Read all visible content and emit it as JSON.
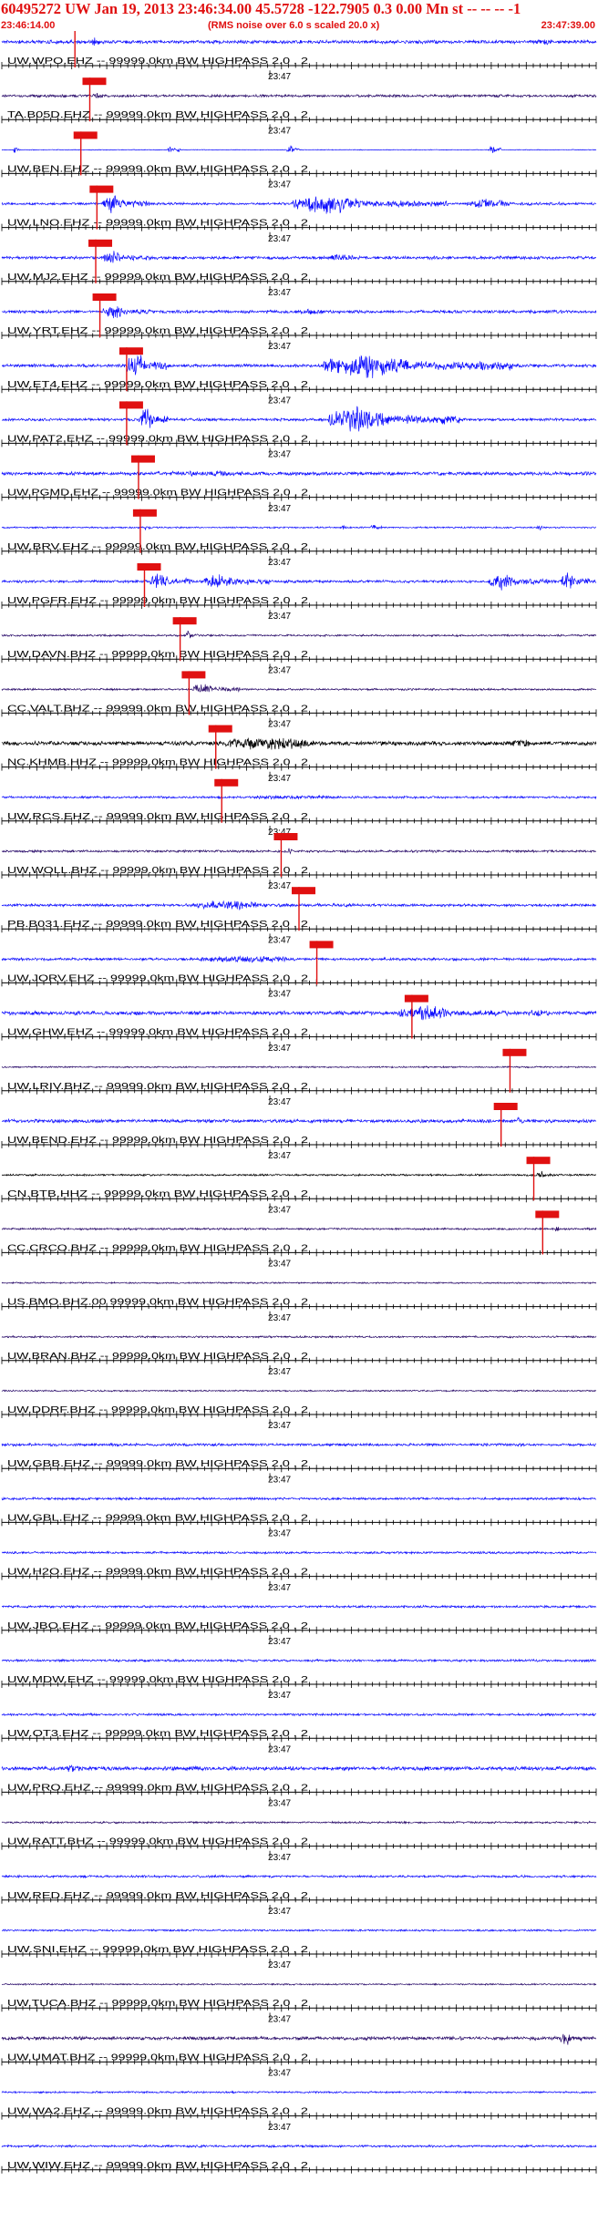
{
  "header": {
    "title": "60495272 UW Jan 19, 2013 23:46:34.00   45.5728 -122.7905  0.3 0.00 Mn st -- -- --  -1",
    "start_time": "23:46:14.00",
    "note": "(RMS noise over 6.0 s scaled 20.0 x)",
    "end_time": "23:47:39.00"
  },
  "colors": {
    "title": "#e01010",
    "trace_blue": "#1010ff",
    "trace_purple": "#2a0c6a",
    "trace_black": "#000000",
    "marker": "#e01010",
    "baseline": "#000000"
  },
  "chart_data": {
    "type": "seismogram",
    "time_axis": {
      "start": "23:46:14.00",
      "end": "23:47:39.00",
      "minute_label": "23:47"
    },
    "traces": [
      {
        "label": "UW.WPO.EHZ -- 99999.0km BW  HIGHPASS  2.0 , 2",
        "color": "blue",
        "arrival": 0.123,
        "amp": 0.45,
        "events": [
          [
            0.15,
            0.2,
            1.2
          ],
          [
            0.9,
            0.97,
            0.8
          ]
        ]
      },
      {
        "label": "TA.B05D.EHZ -- 99999.0km BW  HIGHPASS  2.0 , 2",
        "color": "purple",
        "arrival": 0.148,
        "amp": 0.35,
        "events": [
          [
            0.15,
            0.2,
            0.8
          ]
        ]
      },
      {
        "label": "UW.BEN.EHZ -- 99999.0km BW  HIGHPASS  2.0 , 2",
        "color": "blue",
        "arrival": 0.133,
        "amp": 0.1,
        "events": [
          [
            0.02,
            0.03,
            1.5
          ],
          [
            0.28,
            0.3,
            1.5
          ],
          [
            0.48,
            0.5,
            1.5
          ],
          [
            0.82,
            0.84,
            1.5
          ]
        ]
      },
      {
        "label": "UW.LNO.EHZ -- 99999.0km BW  HIGHPASS  2.0 , 2",
        "color": "blue",
        "arrival": 0.16,
        "amp": 0.3,
        "events": [
          [
            0.17,
            0.25,
            2.6
          ],
          [
            0.49,
            0.75,
            2.4
          ],
          [
            0.78,
            0.95,
            1.2
          ]
        ]
      },
      {
        "label": "UW.MJ2.EHZ -- 99999.0km BW  HIGHPASS  2.0 , 2",
        "color": "blue",
        "arrival": 0.158,
        "amp": 0.4,
        "events": [
          [
            0.17,
            0.25,
            1.8
          ],
          [
            0.55,
            0.65,
            1.0
          ]
        ]
      },
      {
        "label": "UW.YRT.EHZ -- 99999.0km BW  HIGHPASS  2.0 , 2",
        "color": "blue",
        "arrival": 0.165,
        "amp": 0.4,
        "events": [
          [
            0.17,
            0.25,
            2.0
          ],
          [
            0.5,
            0.6,
            0.8
          ]
        ]
      },
      {
        "label": "UW.ET4.EHZ -- 99999.0km BW  HIGHPASS  2.0 , 2",
        "color": "blue",
        "arrival": 0.21,
        "amp": 0.4,
        "events": [
          [
            0.21,
            0.28,
            3.2
          ],
          [
            0.54,
            0.86,
            3.2
          ]
        ]
      },
      {
        "label": "UW.PAT2.EHZ -- 99999.0km BW  HIGHPASS  2.0 , 2",
        "color": "blue",
        "arrival": 0.21,
        "amp": 0.35,
        "events": [
          [
            0.23,
            0.28,
            3.2
          ],
          [
            0.55,
            0.77,
            3.2
          ]
        ]
      },
      {
        "label": "UW.PGMD.EHZ -- 99999.0km BW  HIGHPASS  2.0 , 2",
        "color": "blue",
        "arrival": 0.23,
        "amp": 0.45,
        "events": [
          [
            0.24,
            0.7,
            0.7
          ]
        ]
      },
      {
        "label": "UW.BRV.EHZ -- 99999.0km BW  HIGHPASS  2.0 , 2",
        "color": "blue",
        "arrival": 0.233,
        "amp": 0.2,
        "events": [
          [
            0.24,
            0.25,
            1.0
          ],
          [
            0.57,
            0.59,
            0.9
          ],
          [
            0.62,
            0.64,
            0.9
          ],
          [
            0.9,
            0.92,
            0.9
          ]
        ]
      },
      {
        "label": "UW.PGFR.EHZ -- 99999.0km BW  HIGHPASS  2.0 , 2",
        "color": "blue",
        "arrival": 0.24,
        "amp": 0.35,
        "events": [
          [
            0.25,
            0.32,
            2.4
          ],
          [
            0.34,
            0.45,
            2.4
          ],
          [
            0.82,
            0.92,
            2.4
          ],
          [
            0.94,
            0.99,
            2.4
          ]
        ]
      },
      {
        "label": "UW.DAVN.BHZ -- 99999.0km BW  HIGHPASS  2.0 , 2",
        "color": "purple",
        "arrival": 0.3,
        "amp": 0.25,
        "events": [
          [
            0.31,
            0.33,
            1.4
          ]
        ]
      },
      {
        "label": "CC.VALT.BHZ -- 99999.0km BW  HIGHPASS  2.0 , 2",
        "color": "purple",
        "arrival": 0.315,
        "amp": 0.25,
        "events": [
          [
            0.32,
            0.4,
            1.6
          ]
        ]
      },
      {
        "label": "NC.KHMB.HHZ -- 99999.0km BW  HIGHPASS  2.0 , 2",
        "color": "black",
        "arrival": 0.36,
        "amp": 0.55,
        "events": [
          [
            0.36,
            0.75,
            1.6
          ],
          [
            0.85,
            0.95,
            1.0
          ]
        ]
      },
      {
        "label": "UW.RCS.EHZ -- 99999.0km BW  HIGHPASS  2.0 , 2",
        "color": "blue",
        "arrival": 0.37,
        "amp": 0.3,
        "events": [
          [
            0.38,
            0.9,
            0.5
          ]
        ]
      },
      {
        "label": "UW.WOLL.BHZ -- 99999.0km BW  HIGHPASS  2.0 , 2",
        "color": "purple",
        "arrival": 0.47,
        "amp": 0.3,
        "events": [
          [
            0.48,
            0.5,
            0.8
          ]
        ]
      },
      {
        "label": "PB.B031.EHZ -- 99999.0km BW  HIGHPASS  2.0 , 2",
        "color": "blue",
        "arrival": 0.5,
        "amp": 0.35,
        "events": [
          [
            0.32,
            0.6,
            1.2
          ]
        ]
      },
      {
        "label": "UW.JORV.EHZ -- 99999.0km BW  HIGHPASS  2.0 , 2",
        "color": "blue",
        "arrival": 0.53,
        "amp": 0.35,
        "events": [
          [
            0.33,
            0.7,
            1.0
          ]
        ]
      },
      {
        "label": "UW.GHW.EHZ -- 99999.0km BW  HIGHPASS  2.0 , 2",
        "color": "blue",
        "arrival": 0.69,
        "amp": 0.5,
        "events": [
          [
            0.67,
            0.85,
            2.0
          ],
          [
            0.88,
            0.98,
            1.2
          ]
        ]
      },
      {
        "label": "UW.LRIV.BHZ -- 99999.0km BW  HIGHPASS  2.0 , 2",
        "color": "purple",
        "arrival": 0.855,
        "amp": 0.2,
        "events": []
      },
      {
        "label": "UW.BEND.EHZ -- 99999.0km BW  HIGHPASS  2.0 , 2",
        "color": "blue",
        "arrival": 0.84,
        "amp": 0.45,
        "events": [
          [
            0.86,
            0.9,
            1.0
          ]
        ]
      },
      {
        "label": "CN.BTB.HHZ -- 99999.0km BW  HIGHPASS  2.0 , 2",
        "color": "black",
        "arrival": 0.895,
        "amp": 0.25,
        "events": [
          [
            0.9,
            0.93,
            1.2
          ]
        ]
      },
      {
        "label": "CC.CRCO.BHZ -- 99999.0km BW  HIGHPASS  2.0 , 2",
        "color": "purple",
        "arrival": 0.91,
        "amp": 0.25,
        "events": [
          [
            0.93,
            0.95,
            0.9
          ]
        ]
      },
      {
        "label": "US.BMO.BHZ.00 99999.0km BW  HIGHPASS  2.0 , 2",
        "color": "purple",
        "arrival": null,
        "amp": 0.2,
        "events": []
      },
      {
        "label": "UW.BRAN.BHZ -- 99999.0km BW  HIGHPASS  2.0 , 2",
        "color": "purple",
        "arrival": null,
        "amp": 0.25,
        "events": []
      },
      {
        "label": "UW.DDRF.BHZ -- 99999.0km BW  HIGHPASS  2.0 , 2",
        "color": "purple",
        "arrival": null,
        "amp": 0.2,
        "events": []
      },
      {
        "label": "UW.GBB.EHZ -- 99999.0km BW  HIGHPASS  2.0 , 2",
        "color": "blue",
        "arrival": null,
        "amp": 0.35,
        "events": []
      },
      {
        "label": "UW.GBL.EHZ -- 99999.0km BW  HIGHPASS  2.0 , 2",
        "color": "blue",
        "arrival": null,
        "amp": 0.3,
        "events": []
      },
      {
        "label": "UW.H2O.EHZ -- 99999.0km BW  HIGHPASS  2.0 , 2",
        "color": "blue",
        "arrival": null,
        "amp": 0.3,
        "events": []
      },
      {
        "label": "UW.JBO.EHZ -- 99999.0km BW  HIGHPASS  2.0 , 2",
        "color": "blue",
        "arrival": null,
        "amp": 0.3,
        "events": []
      },
      {
        "label": "UW.MDW.EHZ -- 99999.0km BW  HIGHPASS  2.0 , 2",
        "color": "blue",
        "arrival": null,
        "amp": 0.3,
        "events": []
      },
      {
        "label": "UW.OT3.EHZ -- 99999.0km BW  HIGHPASS  2.0 , 2",
        "color": "blue",
        "arrival": null,
        "amp": 0.3,
        "events": []
      },
      {
        "label": "UW.PRO.EHZ -- 99999.0km BW  HIGHPASS  2.0 , 2",
        "color": "blue",
        "arrival": null,
        "amp": 0.5,
        "events": [
          [
            0.1,
            0.2,
            1.0
          ],
          [
            0.3,
            0.4,
            0.8
          ],
          [
            0.7,
            0.75,
            0.8
          ]
        ]
      },
      {
        "label": "UW.RATT.BHZ -- 99999.0km BW  HIGHPASS  2.0 , 2",
        "color": "purple",
        "arrival": null,
        "amp": 0.25,
        "events": []
      },
      {
        "label": "UW.RED.EHZ -- 99999.0km BW  HIGHPASS  2.0 , 2",
        "color": "blue",
        "arrival": null,
        "amp": 0.3,
        "events": []
      },
      {
        "label": "UW.SNI.EHZ -- 99999.0km BW  HIGHPASS  2.0 , 2",
        "color": "blue",
        "arrival": null,
        "amp": 0.25,
        "events": []
      },
      {
        "label": "UW.TUCA.BHZ -- 99999.0km BW  HIGHPASS  2.0 , 2",
        "color": "purple",
        "arrival": null,
        "amp": 0.2,
        "events": []
      },
      {
        "label": "UW.UMAT.BHZ -- 99999.0km BW  HIGHPASS  2.0 , 2",
        "color": "purple",
        "arrival": null,
        "amp": 0.45,
        "events": [
          [
            0.94,
            0.98,
            2.0
          ]
        ]
      },
      {
        "label": "UW.WA2.EHZ -- 99999.0km BW  HIGHPASS  2.0 , 2",
        "color": "blue",
        "arrival": null,
        "amp": 0.25,
        "events": []
      },
      {
        "label": "UW.WIW.EHZ -- 99999.0km BW  HIGHPASS  2.0 , 2",
        "color": "blue",
        "arrival": null,
        "amp": 0.3,
        "events": []
      }
    ]
  }
}
